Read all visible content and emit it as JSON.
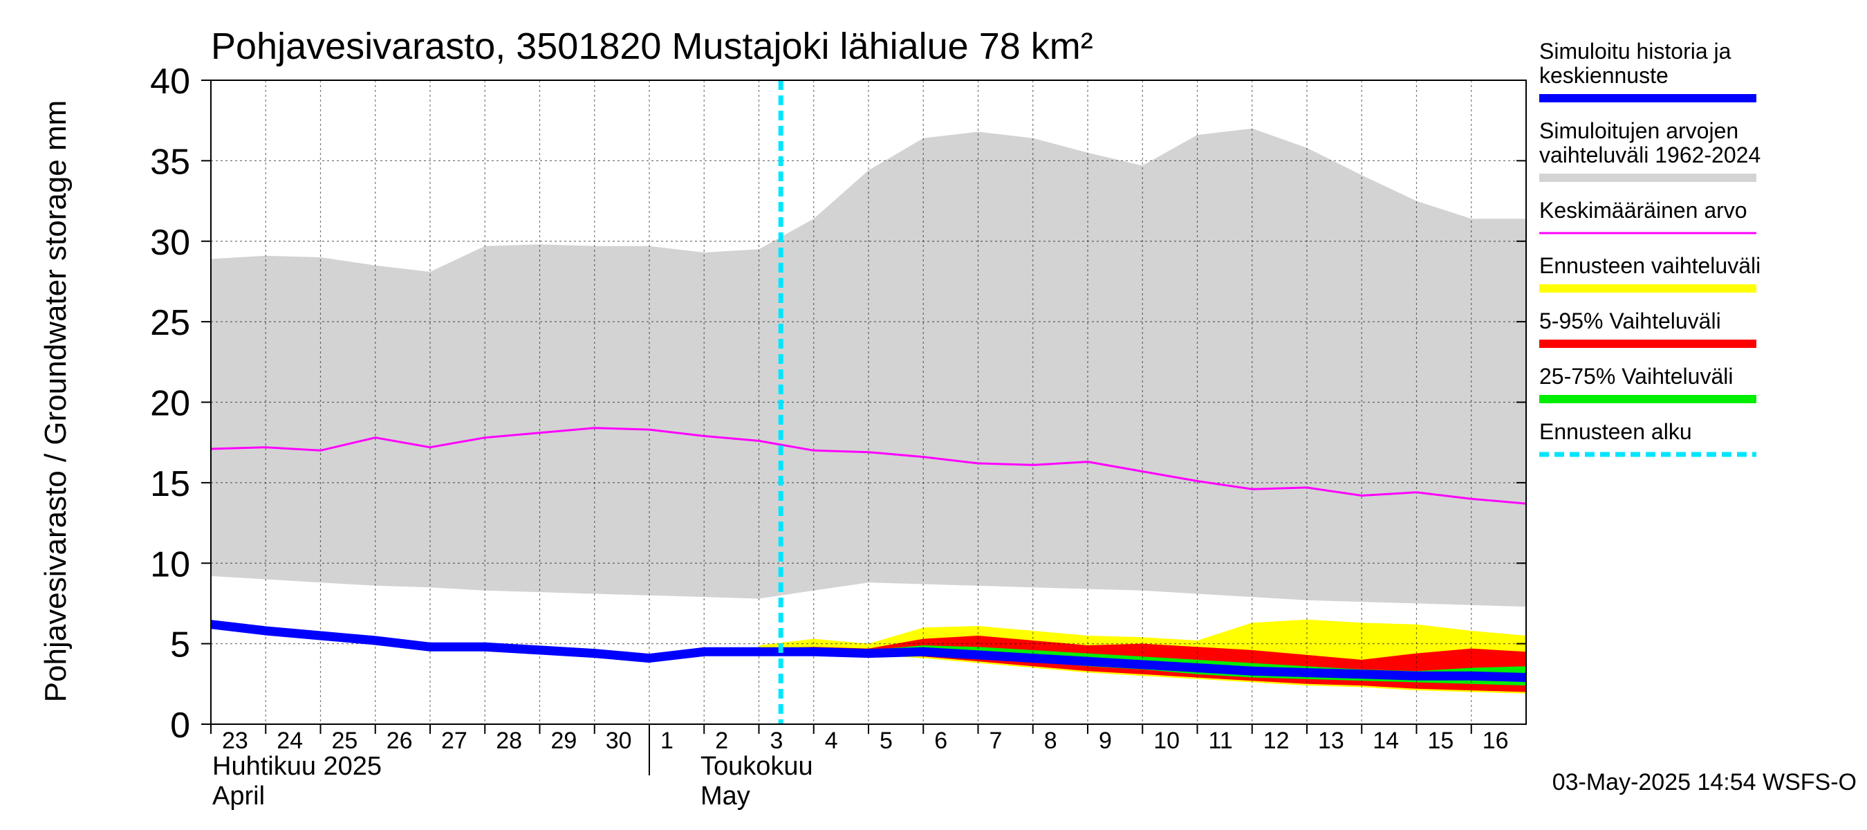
{
  "chart_data": {
    "type": "area",
    "title": "Pohjavesivarasto, 3501820 Mustajoki lähialue 78 km²",
    "ylabel": "Pohjavesivarasto / Groundwater storage   mm",
    "ylim": [
      0,
      40
    ],
    "yticks": [
      0,
      5,
      10,
      15,
      20,
      25,
      30,
      35,
      40
    ],
    "grid": true,
    "legend_position": "right",
    "x_day_labels": [
      "23",
      "24",
      "25",
      "26",
      "27",
      "28",
      "29",
      "30",
      "1",
      "2",
      "3",
      "4",
      "5",
      "6",
      "7",
      "8",
      "9",
      "10",
      "11",
      "12",
      "13",
      "14",
      "15",
      "16"
    ],
    "x_months": [
      {
        "fi": "Huhtikuu  2025",
        "en": "April"
      },
      {
        "fi": "Toukokuu",
        "en": "May"
      }
    ],
    "x_range_days": [
      0,
      24
    ],
    "forecast_start_day": 10.4,
    "series": [
      {
        "name": "Simuloitujen arvojen vaihteluväli 1962-2024",
        "kind": "band",
        "x": [
          0,
          1,
          2,
          3,
          4,
          5,
          6,
          7,
          8,
          9,
          10,
          11,
          12,
          13,
          14,
          15,
          16,
          17,
          18,
          19,
          20,
          21,
          22,
          23,
          24
        ],
        "lower": [
          9.2,
          9.0,
          8.8,
          8.6,
          8.5,
          8.3,
          8.2,
          8.1,
          8.0,
          7.9,
          7.8,
          8.3,
          8.8,
          8.7,
          8.6,
          8.5,
          8.4,
          8.3,
          8.1,
          7.9,
          7.7,
          7.6,
          7.5,
          7.4,
          7.3
        ],
        "upper": [
          28.9,
          29.1,
          29.0,
          28.5,
          28.1,
          29.7,
          29.8,
          29.7,
          29.7,
          29.3,
          29.5,
          31.4,
          34.4,
          36.4,
          36.8,
          36.4,
          35.5,
          34.7,
          36.6,
          37.0,
          35.8,
          34.1,
          32.5,
          31.4,
          31.4
        ]
      },
      {
        "name": "Ennusteen vaihteluväli",
        "kind": "band",
        "x": [
          10,
          11,
          12,
          13,
          14,
          15,
          16,
          17,
          18,
          19,
          20,
          21,
          22,
          23,
          24
        ],
        "lower": [
          4.5,
          4.5,
          4.3,
          4.1,
          3.8,
          3.5,
          3.2,
          3.0,
          2.8,
          2.6,
          2.4,
          2.3,
          2.1,
          2.0,
          1.9
        ],
        "upper": [
          4.9,
          5.3,
          5.0,
          6.0,
          6.1,
          5.8,
          5.5,
          5.4,
          5.2,
          6.3,
          6.5,
          6.3,
          6.2,
          5.8,
          5.5
        ]
      },
      {
        "name": "5-95% Vaihteluväli",
        "kind": "band",
        "x": [
          10,
          11,
          12,
          13,
          14,
          15,
          16,
          17,
          18,
          19,
          20,
          21,
          22,
          23,
          24
        ],
        "lower": [
          4.5,
          4.5,
          4.3,
          4.2,
          3.9,
          3.6,
          3.3,
          3.1,
          2.9,
          2.7,
          2.5,
          2.4,
          2.2,
          2.1,
          2.0
        ],
        "upper": [
          4.7,
          4.8,
          4.7,
          5.3,
          5.5,
          5.2,
          4.9,
          5.0,
          4.8,
          4.6,
          4.3,
          4.0,
          4.4,
          4.7,
          4.5
        ]
      },
      {
        "name": "25-75% Vaihteluväli",
        "kind": "band",
        "x": [
          10,
          11,
          12,
          13,
          14,
          15,
          16,
          17,
          18,
          19,
          20,
          21,
          22,
          23,
          24
        ],
        "lower": [
          4.5,
          4.5,
          4.4,
          4.3,
          4.1,
          3.9,
          3.6,
          3.4,
          3.1,
          2.9,
          2.8,
          2.7,
          2.6,
          2.5,
          2.4
        ],
        "upper": [
          4.6,
          4.7,
          4.6,
          4.9,
          4.8,
          4.6,
          4.4,
          4.2,
          4.0,
          3.8,
          3.6,
          3.4,
          3.3,
          3.5,
          3.6
        ]
      },
      {
        "name": "Keskimääräinen arvo",
        "kind": "line",
        "x": [
          0,
          1,
          2,
          3,
          4,
          5,
          6,
          7,
          8,
          9,
          10,
          11,
          12,
          13,
          14,
          15,
          16,
          17,
          18,
          19,
          20,
          21,
          22,
          23,
          24
        ],
        "values": [
          17.1,
          17.2,
          17.0,
          17.8,
          17.2,
          17.8,
          18.1,
          18.4,
          18.3,
          17.9,
          17.6,
          17.0,
          16.9,
          16.6,
          16.2,
          16.1,
          16.3,
          15.7,
          15.1,
          14.6,
          14.7,
          14.2,
          14.4,
          14.0,
          13.7
        ]
      },
      {
        "name": "Simuloitu historia ja keskiennuste",
        "kind": "line",
        "x": [
          0,
          1,
          2,
          3,
          4,
          5,
          6,
          7,
          8,
          9,
          10,
          11,
          12,
          13,
          14,
          15,
          16,
          17,
          18,
          19,
          20,
          21,
          22,
          23,
          24
        ],
        "values": [
          6.2,
          5.8,
          5.5,
          5.2,
          4.8,
          4.8,
          4.6,
          4.4,
          4.1,
          4.5,
          4.5,
          4.5,
          4.4,
          4.5,
          4.3,
          4.1,
          3.9,
          3.7,
          3.5,
          3.3,
          3.2,
          3.1,
          3.0,
          3.0,
          2.9
        ]
      }
    ],
    "legend": [
      {
        "label": "Simuloitu historia ja\nkeskiennuste",
        "color": "#0000ff",
        "style": "thick"
      },
      {
        "label": "Simuloitujen arvojen\nvaihteluväli 1962-2024",
        "color": "#d3d3d3",
        "style": "thick"
      },
      {
        "label": "Keskimääräinen arvo",
        "color": "#ff00ff",
        "style": "thin"
      },
      {
        "label": "Ennusteen vaihteluväli",
        "color": "#ffff00",
        "style": "thick"
      },
      {
        "label": "5-95% Vaihteluväli",
        "color": "#ff0000",
        "style": "thick"
      },
      {
        "label": "25-75% Vaihteluväli",
        "color": "#00ee00",
        "style": "thick"
      },
      {
        "label": "Ennusteen alku",
        "color": "#00e5ff",
        "style": "dashed"
      }
    ],
    "footer": "03-May-2025 14:54 WSFS-O"
  },
  "colors": {
    "history_band": "#d3d3d3",
    "forecast_band": "#ffff00",
    "band_5_95": "#ff0000",
    "band_25_75": "#00ee00",
    "mean_line": "#ff00ff",
    "main_line": "#0000ff",
    "forecast_start": "#00e5ff"
  }
}
